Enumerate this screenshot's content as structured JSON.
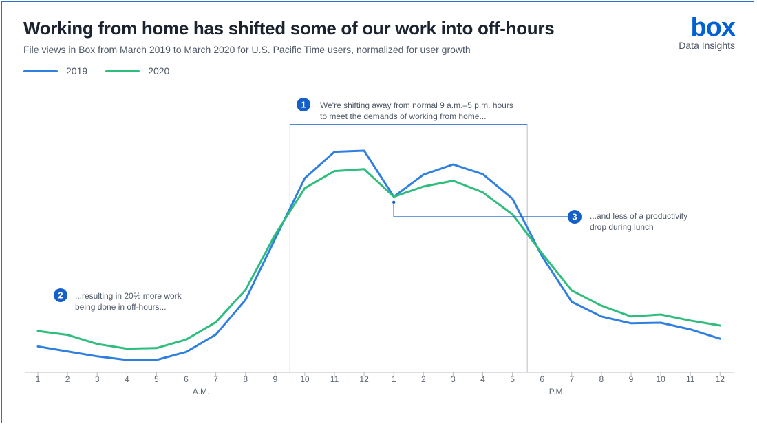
{
  "header": {
    "title": "Working from home has shifted some of our work into off-hours",
    "subtitle": "File views in Box from March 2019 to March 2020 for U.S. Pacific Time users, normalized for user growth"
  },
  "branding": {
    "logo_text": "box",
    "caption": "Data Insights",
    "logo_color": "#0061d5"
  },
  "colors": {
    "series_2019": "#2f7fe0",
    "series_2020": "#2fbd7e",
    "accent": "#1560c8",
    "box_line": "#c4c8cd"
  },
  "legend": [
    {
      "label": "2019",
      "color": "#2f7fe0"
    },
    {
      "label": "2020",
      "color": "#2fbd7e"
    }
  ],
  "annotations": {
    "a1": {
      "number": "1",
      "lines": [
        "We're shifting away from normal 9 a.m.–5 p.m. hours",
        "to meet the demands of working from home..."
      ]
    },
    "a2": {
      "number": "2",
      "lines": [
        "...resulting in 20% more work",
        "being done in off-hours..."
      ]
    },
    "a3": {
      "number": "3",
      "lines": [
        "...and less of a productivity",
        "drop during lunch"
      ]
    }
  },
  "chart_data": {
    "type": "line",
    "title": "Working from home has shifted some of our work into off-hours",
    "x": [
      "1",
      "2",
      "3",
      "4",
      "5",
      "6",
      "7",
      "8",
      "9",
      "10",
      "11",
      "12",
      "1",
      "2",
      "3",
      "4",
      "5",
      "6",
      "7",
      "8",
      "9",
      "10",
      "11",
      "12"
    ],
    "period_labels": [
      "A.M.",
      "P.M."
    ],
    "series": [
      {
        "name": "2019",
        "values": [
          9.4,
          7.6,
          5.8,
          4.5,
          4.5,
          7.4,
          13.7,
          26.3,
          48.5,
          70.5,
          80.1,
          80.5,
          63.8,
          71.8,
          75.5,
          72.0,
          63.1,
          42.1,
          25.6,
          20.3,
          17.8,
          18.0,
          15.6,
          12.2
        ]
      },
      {
        "name": "2020",
        "values": [
          15.0,
          13.6,
          10.3,
          8.6,
          8.8,
          11.9,
          18.2,
          29.9,
          50.0,
          66.9,
          73.1,
          73.8,
          63.8,
          67.5,
          69.6,
          65.4,
          57.4,
          43.2,
          29.7,
          24.2,
          20.3,
          21.0,
          18.8,
          17.0
        ]
      }
    ],
    "ylim": [
      0,
      100
    ],
    "highlight_range": [
      "10",
      "5"
    ],
    "grid": false,
    "legend_position": "top-left"
  }
}
